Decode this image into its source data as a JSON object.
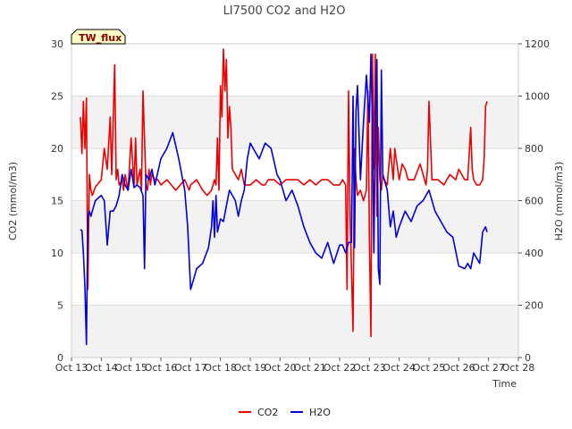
{
  "chart_data": {
    "type": "line",
    "title": "LI7500 CO2 and H2O",
    "badge": "TW_flux",
    "xlabel": "Time",
    "ylabel_left": "CO2 (mmol/m3)",
    "ylabel_right": "H2O (mmol/m3)",
    "ylim_left": [
      0,
      30
    ],
    "ylim_right": [
      0,
      1200
    ],
    "xlim": [
      13,
      28
    ],
    "x_ticks": [
      13,
      14,
      15,
      16,
      17,
      18,
      19,
      20,
      21,
      22,
      23,
      24,
      25,
      26,
      27,
      28
    ],
    "x_tick_labels": [
      "Oct 13",
      "Oct 14",
      "Oct 15",
      "Oct 16",
      "Oct 17",
      "Oct 18",
      "Oct 19",
      "Oct 20",
      "Oct 21",
      "Oct 22",
      "Oct 23",
      "Oct 24",
      "Oct 25",
      "Oct 26",
      "Oct 27",
      "Oct 28"
    ],
    "y_left_ticks": [
      0,
      5,
      10,
      15,
      20,
      25,
      30
    ],
    "y_right_ticks": [
      0,
      200,
      400,
      600,
      800,
      1000,
      1200
    ],
    "legend_position": "bottom-center",
    "series": [
      {
        "name": "CO2",
        "axis": "left",
        "color": "#ee0000",
        "x": [
          13.3,
          13.35,
          13.4,
          13.45,
          13.5,
          13.55,
          13.6,
          13.65,
          13.7,
          13.8,
          14.0,
          14.1,
          14.2,
          14.3,
          14.35,
          14.45,
          14.5,
          14.55,
          14.6,
          14.7,
          14.75,
          14.8,
          14.9,
          15.0,
          15.1,
          15.15,
          15.2,
          15.3,
          15.35,
          15.4,
          15.5,
          15.55,
          15.6,
          15.65,
          15.7,
          15.8,
          15.9,
          16.0,
          16.2,
          16.5,
          16.8,
          16.95,
          17.0,
          17.2,
          17.4,
          17.55,
          17.7,
          17.8,
          17.85,
          17.9,
          17.95,
          18.0,
          18.05,
          18.1,
          18.15,
          18.2,
          18.25,
          18.3,
          18.35,
          18.4,
          18.5,
          18.6,
          18.7,
          18.8,
          19.0,
          19.2,
          19.4,
          19.5,
          19.6,
          19.8,
          20.0,
          20.2,
          20.4,
          20.6,
          20.8,
          21.0,
          21.2,
          21.4,
          21.6,
          21.8,
          22.0,
          22.1,
          22.2,
          22.25,
          22.3,
          22.35,
          22.45,
          22.5,
          22.55,
          22.6,
          22.7,
          22.8,
          22.9,
          22.95,
          23.0,
          23.05,
          23.1,
          23.15,
          23.2,
          23.25,
          23.3,
          23.35,
          23.4,
          23.45,
          23.5,
          23.6,
          23.7,
          23.8,
          23.85,
          23.9,
          24.0,
          24.1,
          24.2,
          24.3,
          24.5,
          24.7,
          24.9,
          24.95,
          25.0,
          25.1,
          25.3,
          25.5,
          25.7,
          25.9,
          26.0,
          26.2,
          26.3,
          26.4,
          26.45,
          26.5,
          26.6,
          26.7,
          26.8,
          26.85,
          26.9,
          26.95
        ],
        "values": [
          23.0,
          19.5,
          24.5,
          20.0,
          24.8,
          6.5,
          17.5,
          16.0,
          15.5,
          16.3,
          17.0,
          20.0,
          18.0,
          23.0,
          17.5,
          28.0,
          17.0,
          18.0,
          16.5,
          17.0,
          16.0,
          17.5,
          16.0,
          21.0,
          16.5,
          21.0,
          16.5,
          18.0,
          16.0,
          25.5,
          16.5,
          16.0,
          18.0,
          16.5,
          17.5,
          17.0,
          17.0,
          16.5,
          17.0,
          16.0,
          17.0,
          16.0,
          16.5,
          17.0,
          16.0,
          15.5,
          16.0,
          17.0,
          16.5,
          21.0,
          16.0,
          26.0,
          23.0,
          29.5,
          25.5,
          28.5,
          21.0,
          24.0,
          22.0,
          18.0,
          17.5,
          17.0,
          18.0,
          16.5,
          16.5,
          17.0,
          16.5,
          16.5,
          17.0,
          17.0,
          16.5,
          17.0,
          17.0,
          17.0,
          16.5,
          17.0,
          16.5,
          17.0,
          17.0,
          16.5,
          16.5,
          17.0,
          16.5,
          6.5,
          25.5,
          13.5,
          2.5,
          20.0,
          17.0,
          15.5,
          16.0,
          15.0,
          16.0,
          25.5,
          11.5,
          2.0,
          29.0,
          18.0,
          29.0,
          13.5,
          22.0,
          17.0,
          16.0,
          17.5,
          17.0,
          16.5,
          20.0,
          17.0,
          20.0,
          19.0,
          17.0,
          18.5,
          18.0,
          17.0,
          17.0,
          18.5,
          16.5,
          18.0,
          24.5,
          17.0,
          17.0,
          16.5,
          17.5,
          17.0,
          18.0,
          17.0,
          17.0,
          22.0,
          18.0,
          17.0,
          16.5,
          16.5,
          17.0,
          19.0,
          24.0,
          24.5
        ]
      },
      {
        "name": "H2O",
        "axis": "right",
        "color": "#0000dd",
        "x": [
          13.3,
          13.35,
          13.4,
          13.45,
          13.5,
          13.55,
          13.6,
          13.65,
          13.7,
          13.8,
          14.0,
          14.1,
          14.2,
          14.3,
          14.4,
          14.5,
          14.6,
          14.7,
          14.8,
          14.9,
          15.0,
          15.1,
          15.2,
          15.3,
          15.4,
          15.45,
          15.5,
          15.6,
          15.7,
          15.8,
          16.0,
          16.2,
          16.4,
          16.6,
          16.8,
          16.9,
          17.0,
          17.1,
          17.2,
          17.3,
          17.4,
          17.6,
          17.7,
          17.75,
          17.8,
          17.85,
          17.9,
          18.0,
          18.1,
          18.2,
          18.3,
          18.4,
          18.5,
          18.6,
          18.7,
          18.8,
          18.9,
          19.0,
          19.1,
          19.3,
          19.5,
          19.7,
          19.9,
          20.0,
          20.2,
          20.4,
          20.6,
          20.8,
          21.0,
          21.2,
          21.4,
          21.6,
          21.8,
          22.0,
          22.1,
          22.2,
          22.3,
          22.4,
          22.45,
          22.5,
          22.55,
          22.6,
          22.7,
          22.8,
          22.9,
          23.0,
          23.05,
          23.1,
          23.15,
          23.2,
          23.25,
          23.3,
          23.35,
          23.4,
          23.45,
          23.5,
          23.6,
          23.7,
          23.8,
          23.9,
          24.0,
          24.2,
          24.4,
          24.6,
          24.8,
          25.0,
          25.2,
          25.4,
          25.6,
          25.8,
          26.0,
          26.2,
          26.3,
          26.4,
          26.5,
          26.6,
          26.7,
          26.8,
          26.9,
          26.95
        ],
        "values": [
          490,
          485,
          400,
          270,
          50,
          540,
          560,
          540,
          560,
          600,
          620,
          600,
          430,
          560,
          560,
          580,
          620,
          700,
          660,
          640,
          720,
          650,
          660,
          650,
          620,
          340,
          700,
          680,
          720,
          660,
          760,
          800,
          860,
          760,
          640,
          500,
          260,
          300,
          340,
          350,
          360,
          420,
          500,
          600,
          460,
          620,
          480,
          530,
          520,
          580,
          640,
          620,
          600,
          540,
          600,
          640,
          760,
          820,
          800,
          760,
          820,
          800,
          700,
          680,
          600,
          640,
          580,
          500,
          440,
          400,
          380,
          440,
          360,
          430,
          430,
          400,
          440,
          440,
          1000,
          420,
          940,
          1040,
          680,
          900,
          1080,
          900,
          1160,
          900,
          400,
          900,
          1140,
          340,
          280,
          1100,
          700,
          680,
          640,
          500,
          560,
          460,
          500,
          560,
          520,
          580,
          600,
          640,
          560,
          520,
          480,
          460,
          350,
          340,
          360,
          340,
          400,
          380,
          360,
          480,
          500,
          480
        ]
      }
    ]
  }
}
